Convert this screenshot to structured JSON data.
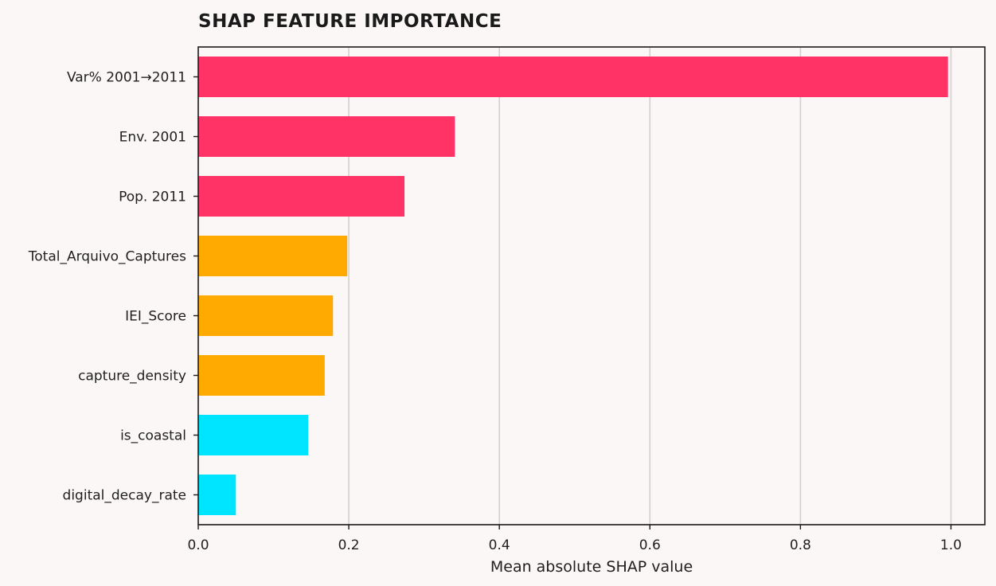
{
  "chart_data": {
    "type": "bar",
    "orientation": "horizontal",
    "title": "SHAP FEATURE IMPORTANCE",
    "xlabel": "Mean absolute SHAP value",
    "ylabel": "",
    "xlim": [
      0,
      1.045
    ],
    "xticks": [
      "0.0",
      "0.2",
      "0.4",
      "0.6",
      "0.8",
      "1.0"
    ],
    "grid": "vertical",
    "categories": [
      "Var% 2001→2011",
      "Env. 2001",
      "Pop. 2011",
      "Total_Arquivo_Captures",
      "IEI_Score",
      "capture_density",
      "is_coastal",
      "digital_decay_rate"
    ],
    "values": [
      0.996,
      0.341,
      0.274,
      0.198,
      0.179,
      0.168,
      0.146,
      0.05
    ],
    "colors": [
      "#ff3366",
      "#ff3366",
      "#ff3366",
      "#ffaa00",
      "#ffaa00",
      "#ffaa00",
      "#00e5ff",
      "#00e5ff"
    ]
  }
}
